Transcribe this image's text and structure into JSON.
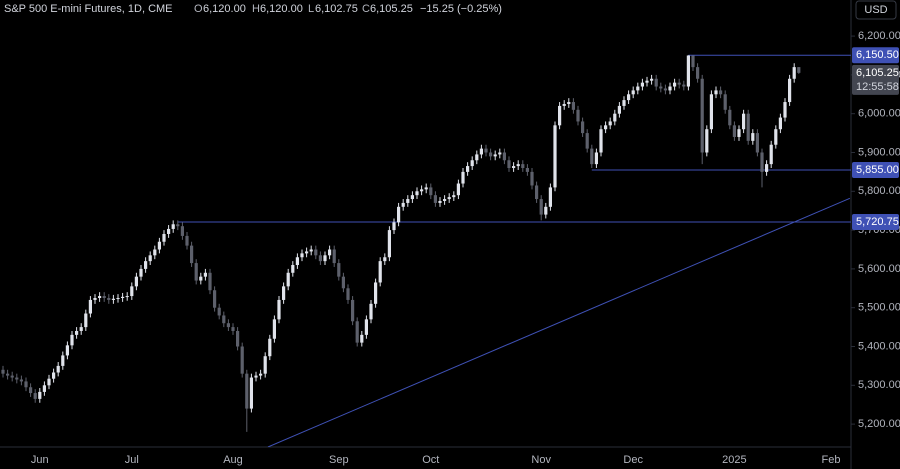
{
  "chart_data": {
    "type": "candlestick",
    "header": {
      "title": "S&P 500 E-mini Futures, 1D, CME",
      "open_label": "O",
      "open": "6,120.00",
      "high_label": "H",
      "high": "6,120.00",
      "low_label": "L",
      "low": "6,102.75",
      "close_label": "C",
      "close": "6,105.25",
      "change": "−15.25 (−0.25%)"
    },
    "currency": "USD",
    "up_color": "#e0e3eb",
    "down_color": "#5d606b",
    "level_color": "#3f51b5",
    "categories": [
      null,
      null,
      null,
      null,
      null,
      null,
      null,
      null,
      "Jun",
      null,
      null,
      null,
      null,
      null,
      null,
      null,
      null,
      null,
      null,
      null,
      null,
      null,
      null,
      null,
      null,
      null,
      null,
      null,
      "Jul",
      null,
      null,
      null,
      null,
      null,
      null,
      null,
      null,
      null,
      null,
      null,
      null,
      null,
      null,
      null,
      null,
      null,
      null,
      null,
      null,
      null,
      "Aug",
      null,
      null,
      null,
      null,
      null,
      null,
      null,
      null,
      null,
      null,
      null,
      null,
      null,
      null,
      null,
      null,
      null,
      null,
      null,
      null,
      null,
      null,
      "Sep",
      null,
      null,
      null,
      null,
      null,
      null,
      null,
      null,
      null,
      null,
      null,
      null,
      null,
      null,
      null,
      null,
      null,
      null,
      null,
      "Oct",
      null,
      null,
      null,
      null,
      null,
      null,
      null,
      null,
      null,
      null,
      null,
      null,
      null,
      null,
      null,
      null,
      null,
      null,
      null,
      null,
      null,
      null,
      null,
      "Nov",
      null,
      null,
      null,
      null,
      null,
      null,
      null,
      null,
      null,
      null,
      null,
      null,
      null,
      null,
      null,
      null,
      null,
      null,
      null,
      "Dec",
      null,
      null,
      null,
      null,
      null,
      null,
      null,
      null,
      null,
      null,
      null,
      null,
      null,
      null,
      null,
      null,
      null,
      null,
      null,
      null,
      null,
      "2025",
      null,
      null,
      null,
      null,
      null,
      null,
      null,
      null,
      null,
      null,
      null,
      null,
      null,
      null,
      null,
      null,
      null,
      null,
      null,
      null,
      "Feb",
      null
    ],
    "open": [
      5340,
      5330,
      5325,
      5320,
      5315,
      5310,
      5295,
      5280,
      5265,
      5283,
      5300,
      5317,
      5333,
      5350,
      5377,
      5403,
      5430,
      5440,
      5450,
      5485,
      5520,
      5525,
      5530,
      5525,
      5520,
      5523,
      5525,
      5528,
      5530,
      5555,
      5580,
      5600,
      5620,
      5635,
      5650,
      5670,
      5690,
      5703,
      5715,
      5710,
      5685,
      5660,
      5615,
      5570,
      5580,
      5590,
      5545,
      5500,
      5480,
      5460,
      5450,
      5440,
      5400,
      5330,
      5240,
      5320,
      5325,
      5330,
      5375,
      5420,
      5470,
      5520,
      5555,
      5590,
      5610,
      5630,
      5640,
      5645,
      5650,
      5635,
      5620,
      5635,
      5650,
      5615,
      5580,
      5550,
      5520,
      5465,
      5410,
      5430,
      5470,
      5510,
      5565,
      5620,
      5630,
      5700,
      5720,
      5760,
      5770,
      5780,
      5790,
      5800,
      5805,
      5810,
      5790,
      5770,
      5775,
      5780,
      5785,
      5790,
      5820,
      5850,
      5865,
      5880,
      5895,
      5910,
      5900,
      5890,
      5895,
      5900,
      5880,
      5860,
      5865,
      5870,
      5860,
      5850,
      5815,
      5780,
      5740,
      5760,
      5810,
      5970,
      6020,
      6025,
      6030,
      6010,
      5980,
      5950,
      5910,
      5870,
      5900,
      5960,
      5970,
      5980,
      6000,
      6020,
      6035,
      6050,
      6060,
      6070,
      6080,
      6085,
      6090,
      6070,
      6065,
      6060,
      6070,
      6080,
      6075,
      6070,
      6150,
      6120,
      6090,
      5900,
      5960,
      6050,
      6060,
      6050,
      6010,
      5970,
      5940,
      5960,
      6000,
      5930,
      5950,
      5900,
      5850,
      5870,
      5920,
      5960,
      5990,
      6030,
      6090,
      6120,
      null,
      null,
      null,
      null,
      null,
      null,
      null,
      null
    ],
    "high": [
      5350,
      5340,
      5335,
      5330,
      5325,
      5320,
      5305,
      5290,
      5293,
      5310,
      5327,
      5343,
      5360,
      5387,
      5413,
      5440,
      5450,
      5460,
      5495,
      5530,
      5535,
      5540,
      5540,
      5535,
      5533,
      5535,
      5538,
      5540,
      5565,
      5590,
      5610,
      5630,
      5645,
      5660,
      5680,
      5700,
      5713,
      5725,
      5725,
      5720,
      5695,
      5670,
      5625,
      5590,
      5600,
      5600,
      5555,
      5510,
      5490,
      5470,
      5460,
      5450,
      5410,
      5340,
      5330,
      5335,
      5340,
      5385,
      5430,
      5480,
      5530,
      5565,
      5600,
      5620,
      5640,
      5650,
      5655,
      5660,
      5660,
      5645,
      5645,
      5660,
      5660,
      5625,
      5590,
      5560,
      5530,
      5475,
      5440,
      5480,
      5520,
      5575,
      5630,
      5640,
      5710,
      5730,
      5770,
      5780,
      5790,
      5800,
      5810,
      5815,
      5820,
      5820,
      5800,
      5785,
      5790,
      5795,
      5800,
      5830,
      5860,
      5875,
      5890,
      5905,
      5920,
      5920,
      5910,
      5905,
      5910,
      5910,
      5890,
      5875,
      5880,
      5880,
      5870,
      5860,
      5825,
      5790,
      5770,
      5820,
      5980,
      6030,
      6035,
      6040,
      6040,
      6020,
      5990,
      5960,
      5920,
      5910,
      5970,
      5980,
      5990,
      6010,
      6030,
      6045,
      6060,
      6070,
      6080,
      6090,
      6095,
      6100,
      6100,
      6080,
      6075,
      6080,
      6090,
      6090,
      6085,
      6150.5,
      6150,
      6130,
      6100,
      5970,
      6060,
      6070,
      6070,
      6060,
      6020,
      5980,
      5970,
      6010,
      6010,
      5960,
      5960,
      5910,
      5880,
      5930,
      5970,
      6000,
      6040,
      6100,
      6130,
      6120,
      null,
      null,
      null,
      null,
      null,
      null,
      null,
      null
    ],
    "low": [
      5320,
      5315,
      5310,
      5305,
      5300,
      5285,
      5270,
      5255,
      5255,
      5273,
      5290,
      5307,
      5323,
      5340,
      5367,
      5393,
      5420,
      5430,
      5440,
      5475,
      5510,
      5515,
      5515,
      5510,
      5510,
      5513,
      5515,
      5518,
      5520,
      5545,
      5570,
      5590,
      5610,
      5625,
      5640,
      5660,
      5680,
      5693,
      5700,
      5675,
      5650,
      5605,
      5560,
      5560,
      5570,
      5535,
      5490,
      5470,
      5450,
      5440,
      5430,
      5390,
      5320,
      5180,
      5230,
      5310,
      5315,
      5320,
      5365,
      5410,
      5460,
      5510,
      5545,
      5580,
      5600,
      5620,
      5630,
      5635,
      5625,
      5610,
      5610,
      5625,
      5605,
      5570,
      5540,
      5510,
      5455,
      5400,
      5400,
      5420,
      5460,
      5500,
      5555,
      5610,
      5620,
      5690,
      5710,
      5750,
      5760,
      5770,
      5780,
      5790,
      5795,
      5780,
      5760,
      5760,
      5765,
      5770,
      5775,
      5780,
      5810,
      5840,
      5855,
      5870,
      5885,
      5890,
      5880,
      5880,
      5885,
      5870,
      5850,
      5850,
      5855,
      5850,
      5840,
      5805,
      5770,
      5725,
      5730,
      5750,
      5800,
      5960,
      6010,
      6015,
      6000,
      5970,
      5940,
      5900,
      5860,
      5860,
      5890,
      5950,
      5960,
      5970,
      5990,
      6010,
      6025,
      6040,
      6050,
      6060,
      6070,
      6075,
      6060,
      6055,
      6050,
      6050,
      6060,
      6065,
      6060,
      6060,
      6110,
      6080,
      5870,
      5890,
      5950,
      6040,
      6040,
      6000,
      5960,
      5930,
      5930,
      5950,
      5920,
      5920,
      5890,
      5810,
      5840,
      5860,
      5910,
      5950,
      5980,
      6020,
      6080,
      6102.75,
      null,
      null,
      null,
      null,
      null,
      null,
      null,
      null
    ],
    "close": [
      5330,
      5325,
      5320,
      5315,
      5310,
      5295,
      5280,
      5265,
      5283,
      5300,
      5317,
      5333,
      5350,
      5377,
      5403,
      5430,
      5440,
      5450,
      5485,
      5520,
      5525,
      5530,
      5525,
      5520,
      5523,
      5525,
      5528,
      5530,
      5555,
      5580,
      5600,
      5620,
      5635,
      5650,
      5670,
      5690,
      5703,
      5715,
      5710,
      5685,
      5660,
      5615,
      5570,
      5580,
      5590,
      5545,
      5500,
      5480,
      5460,
      5450,
      5440,
      5400,
      5330,
      5240,
      5320,
      5325,
      5330,
      5375,
      5420,
      5470,
      5520,
      5555,
      5590,
      5610,
      5630,
      5640,
      5645,
      5650,
      5635,
      5620,
      5635,
      5650,
      5615,
      5580,
      5550,
      5520,
      5465,
      5410,
      5430,
      5470,
      5510,
      5565,
      5620,
      5630,
      5700,
      5720,
      5760,
      5770,
      5780,
      5790,
      5800,
      5805,
      5810,
      5790,
      5770,
      5775,
      5780,
      5785,
      5790,
      5820,
      5850,
      5865,
      5880,
      5895,
      5910,
      5900,
      5890,
      5895,
      5900,
      5880,
      5860,
      5865,
      5870,
      5860,
      5850,
      5815,
      5780,
      5740,
      5760,
      5810,
      5970,
      6020,
      6025,
      6030,
      6010,
      5980,
      5950,
      5910,
      5870,
      5900,
      5960,
      5970,
      5980,
      6000,
      6020,
      6035,
      6050,
      6060,
      6070,
      6080,
      6085,
      6090,
      6070,
      6065,
      6060,
      6070,
      6080,
      6075,
      6070,
      6150,
      6120,
      6090,
      5900,
      5960,
      6050,
      6060,
      6050,
      6010,
      5970,
      5940,
      5960,
      6000,
      5930,
      5950,
      5900,
      5850,
      5870,
      5920,
      5960,
      5990,
      6030,
      6090,
      6120,
      6105.25,
      null,
      null,
      null,
      null,
      null,
      null,
      null,
      null
    ],
    "ylim": [
      5141,
      6293
    ],
    "yticks": [
      {
        "value": 5200,
        "label": "5,200.00"
      },
      {
        "value": 5300,
        "label": "5,300.00"
      },
      {
        "value": 5400,
        "label": "5,400.00"
      },
      {
        "value": 5500,
        "label": "5,500.00"
      },
      {
        "value": 5600,
        "label": "5,600.00"
      },
      {
        "value": 5700,
        "label": "5,700.00"
      },
      {
        "value": 5800,
        "label": "5,800.00"
      },
      {
        "value": 5900,
        "label": "5,900.00"
      },
      {
        "value": 6000,
        "label": "6,000.00"
      },
      {
        "value": 6100,
        "label": "6,100.00"
      },
      {
        "value": 6200,
        "label": "6,200.00"
      }
    ],
    "levels": [
      {
        "value": 6150.5,
        "label": "6,150.50",
        "from": 149
      },
      {
        "value": 5855,
        "label": "5,855.00",
        "from": 128
      },
      {
        "value": 5720.75,
        "label": "5,720.75",
        "from": 38
      }
    ],
    "trendline": {
      "x": [
        57.6,
        184.1
      ],
      "y": [
        5141,
        5782
      ]
    },
    "last_price": {
      "value": 6105.25,
      "label": "6,105.25",
      "countdown": "12:55:58"
    }
  }
}
